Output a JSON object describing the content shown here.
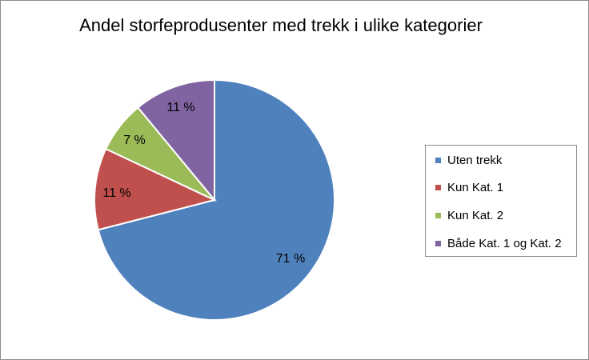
{
  "chart_data": {
    "type": "pie",
    "title": "Andel storfeprodusenter med trekk i ulike kategorier",
    "categories": [
      "Uten trekk",
      "Kun Kat. 1",
      "Kun Kat. 2",
      "Både Kat. 1 og Kat. 2"
    ],
    "values": [
      71,
      11,
      7,
      11
    ],
    "value_labels": [
      "71 %",
      "11 %",
      "7 %",
      "11 %"
    ],
    "colors": [
      "#4F81BD",
      "#C0504D",
      "#9BBB59",
      "#8064A2"
    ],
    "legend_position": "right"
  }
}
